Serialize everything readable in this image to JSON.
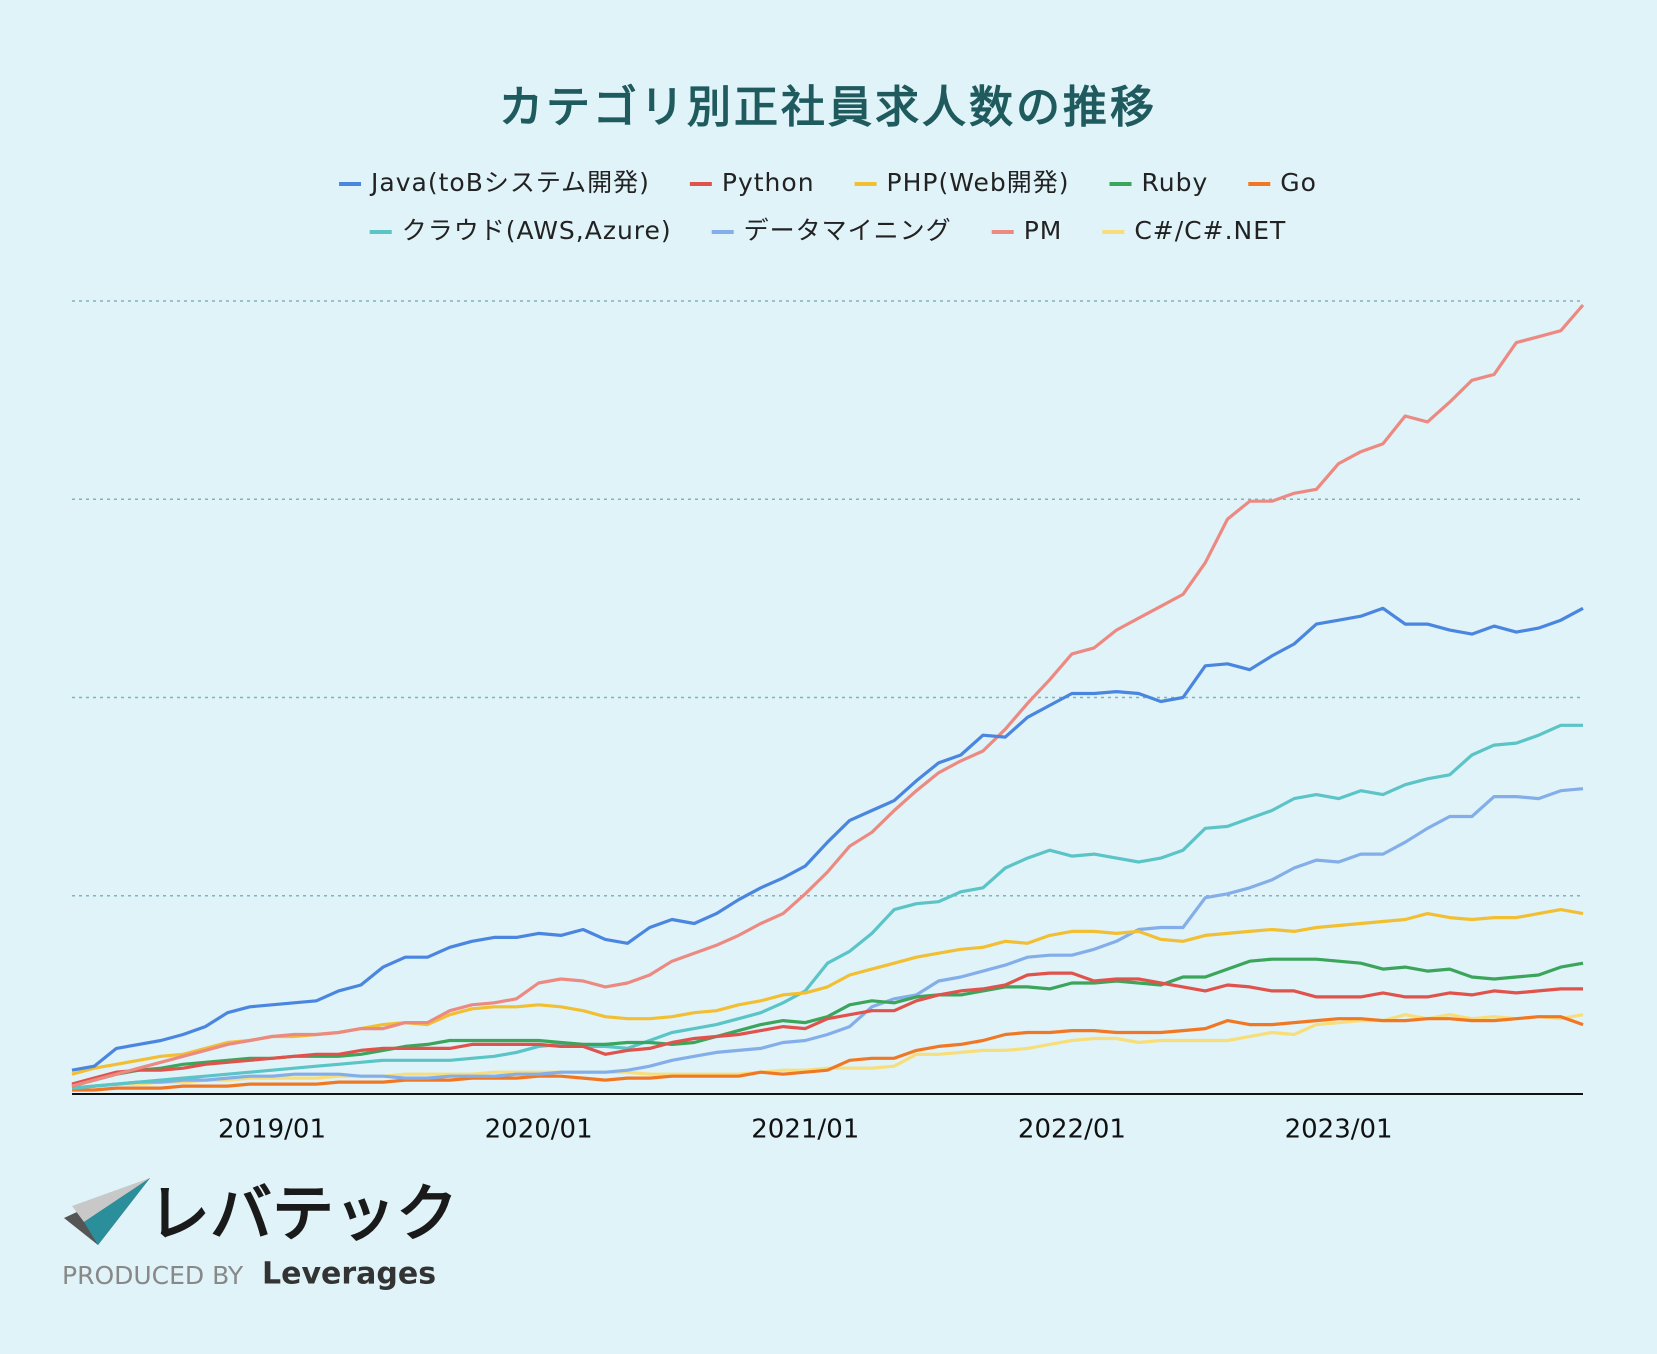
{
  "chart_data": {
    "type": "line",
    "title": "カテゴリ別正社員求人数の推移",
    "categories": [
      null,
      null,
      null,
      null,
      null,
      null,
      null,
      null,
      null,
      "2019/01",
      null,
      null,
      null,
      null,
      null,
      null,
      null,
      null,
      null,
      null,
      null,
      "2020/01",
      null,
      null,
      null,
      null,
      null,
      null,
      null,
      null,
      null,
      null,
      null,
      "2021/01",
      null,
      null,
      null,
      null,
      null,
      null,
      null,
      null,
      null,
      null,
      null,
      "2022/01",
      null,
      null,
      null,
      null,
      null,
      null,
      null,
      null,
      null,
      null,
      null,
      "2023/01",
      null,
      null,
      null,
      null,
      null,
      null,
      null,
      null,
      null,
      null,
      null
    ],
    "ylim": [
      0,
      400
    ],
    "yticks": [
      0,
      100,
      200,
      300,
      400
    ],
    "grid": true,
    "series": [
      {
        "name": "Java(toBシステム開発)",
        "color": "#4a86e0",
        "values": [
          12,
          14,
          23,
          25,
          27,
          30,
          34,
          41,
          44,
          45,
          46,
          47,
          52,
          55,
          64,
          69,
          69,
          74,
          77,
          79,
          79,
          81,
          80,
          83,
          78,
          76,
          84,
          88,
          86,
          91,
          98,
          104,
          109,
          115,
          127,
          138,
          143,
          148,
          158,
          167,
          171,
          181,
          180,
          190,
          196,
          202,
          202,
          203,
          202,
          198,
          200,
          216,
          217,
          214,
          221,
          227,
          237,
          239,
          241,
          245,
          237,
          237,
          234,
          232,
          236,
          233,
          235,
          239,
          245
        ]
      },
      {
        "name": "Python",
        "color": "#e0534d",
        "values": [
          5,
          8,
          11,
          12,
          12,
          13,
          15,
          16,
          17,
          18,
          19,
          20,
          20,
          22,
          23,
          23,
          23,
          23,
          25,
          25,
          25,
          25,
          24,
          24,
          20,
          22,
          23,
          26,
          28,
          29,
          30,
          32,
          34,
          33,
          38,
          40,
          42,
          42,
          47,
          50,
          52,
          53,
          55,
          60,
          61,
          61,
          57,
          58,
          58,
          56,
          54,
          52,
          55,
          54,
          52,
          52,
          49,
          49,
          49,
          51,
          49,
          49,
          51,
          50,
          52,
          51,
          52,
          53,
          53
        ]
      },
      {
        "name": "PHP(Web開発)",
        "color": "#f2bf33",
        "values": [
          10,
          13,
          15,
          17,
          19,
          20,
          23,
          26,
          27,
          29,
          29,
          30,
          31,
          33,
          35,
          36,
          35,
          40,
          43,
          44,
          44,
          45,
          44,
          42,
          39,
          38,
          38,
          39,
          41,
          42,
          45,
          47,
          50,
          51,
          54,
          60,
          63,
          66,
          69,
          71,
          73,
          74,
          77,
          76,
          80,
          82,
          82,
          81,
          82,
          78,
          77,
          80,
          81,
          82,
          83,
          82,
          84,
          85,
          86,
          87,
          88,
          91,
          89,
          88,
          89,
          89,
          91,
          93,
          91
        ]
      },
      {
        "name": "Ruby",
        "color": "#3ba55c",
        "values": [
          4,
          7,
          10,
          12,
          13,
          15,
          16,
          17,
          18,
          18,
          19,
          19,
          19,
          20,
          22,
          24,
          25,
          27,
          27,
          27,
          27,
          27,
          26,
          25,
          25,
          26,
          26,
          25,
          26,
          29,
          32,
          35,
          37,
          36,
          39,
          45,
          47,
          46,
          49,
          50,
          50,
          52,
          54,
          54,
          53,
          56,
          56,
          57,
          56,
          55,
          59,
          59,
          63,
          67,
          68,
          68,
          68,
          67,
          66,
          63,
          64,
          62,
          63,
          59,
          58,
          59,
          60,
          64,
          66
        ]
      },
      {
        "name": "Go",
        "color": "#f07824",
        "values": [
          2,
          2,
          3,
          3,
          3,
          4,
          4,
          4,
          5,
          5,
          5,
          5,
          6,
          6,
          6,
          7,
          7,
          7,
          8,
          8,
          8,
          9,
          9,
          8,
          7,
          8,
          8,
          9,
          9,
          9,
          9,
          11,
          10,
          11,
          12,
          17,
          18,
          18,
          22,
          24,
          25,
          27,
          30,
          31,
          31,
          32,
          32,
          31,
          31,
          31,
          32,
          33,
          37,
          35,
          35,
          36,
          37,
          38,
          38,
          37,
          37,
          38,
          38,
          37,
          37,
          38,
          39,
          39,
          35
        ]
      },
      {
        "name": "クラウド(AWS,Azure)",
        "color": "#5bc4c6",
        "values": [
          3,
          4,
          5,
          6,
          7,
          8,
          9,
          10,
          11,
          12,
          13,
          14,
          15,
          16,
          17,
          17,
          17,
          17,
          18,
          19,
          21,
          24,
          25,
          24,
          24,
          23,
          27,
          31,
          33,
          35,
          38,
          41,
          46,
          52,
          66,
          72,
          81,
          93,
          96,
          97,
          102,
          104,
          114,
          119,
          123,
          120,
          121,
          119,
          117,
          119,
          123,
          134,
          135,
          139,
          143,
          149,
          151,
          149,
          153,
          151,
          156,
          159,
          161,
          171,
          176,
          177,
          181,
          186,
          186
        ]
      },
      {
        "name": "データマイニング",
        "color": "#84aeea",
        "values": [
          3,
          4,
          5,
          6,
          6,
          7,
          7,
          8,
          9,
          9,
          10,
          10,
          10,
          9,
          9,
          8,
          8,
          9,
          9,
          9,
          10,
          10,
          11,
          11,
          11,
          12,
          14,
          17,
          19,
          21,
          22,
          23,
          26,
          27,
          30,
          34,
          44,
          48,
          50,
          57,
          59,
          62,
          65,
          69,
          70,
          70,
          73,
          77,
          83,
          84,
          84,
          99,
          101,
          104,
          108,
          114,
          118,
          117,
          121,
          121,
          127,
          134,
          140,
          140,
          150,
          150,
          149,
          153,
          154
        ]
      },
      {
        "name": "PM",
        "color": "#ec8a82",
        "values": [
          4,
          7,
          10,
          13,
          16,
          19,
          22,
          25,
          27,
          29,
          30,
          30,
          31,
          33,
          33,
          36,
          36,
          42,
          45,
          46,
          48,
          56,
          58,
          57,
          54,
          56,
          60,
          67,
          71,
          75,
          80,
          86,
          91,
          101,
          112,
          125,
          132,
          143,
          153,
          162,
          168,
          173,
          184,
          197,
          209,
          222,
          225,
          234,
          240,
          246,
          252,
          268,
          290,
          299,
          299,
          303,
          305,
          318,
          324,
          328,
          342,
          339,
          349,
          360,
          363,
          379,
          382,
          385,
          398
        ]
      },
      {
        "name": "C#/C#.NET",
        "color": "#f7de7a",
        "values": [
          3,
          4,
          5,
          5,
          6,
          6,
          7,
          7,
          8,
          8,
          8,
          8,
          9,
          9,
          9,
          10,
          10,
          10,
          10,
          11,
          11,
          11,
          11,
          11,
          11,
          11,
          10,
          10,
          10,
          10,
          10,
          11,
          12,
          12,
          13,
          13,
          13,
          14,
          20,
          20,
          21,
          22,
          22,
          23,
          25,
          27,
          28,
          28,
          26,
          27,
          27,
          27,
          27,
          29,
          31,
          30,
          35,
          36,
          37,
          37,
          40,
          38,
          40,
          38,
          39,
          38,
          39,
          38,
          40
        ]
      }
    ]
  },
  "logo": {
    "name": "レバテック",
    "produced_by": "PRODUCED BY",
    "company": "Leverages"
  }
}
